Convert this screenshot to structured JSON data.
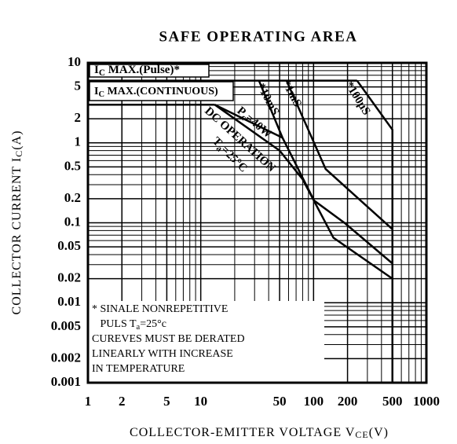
{
  "chart_data": {
    "type": "line",
    "title": "SAFE OPERATING AREA",
    "x_label": [
      "COLLECTOR-EMITTER VOLTAGE V",
      "CE",
      "(V)"
    ],
    "y_label": [
      "COLLECTOR CURRENT I",
      "C",
      "(A)"
    ],
    "log_x": true,
    "log_y": true,
    "grid": true,
    "color": "#000000",
    "xlim": [
      1,
      1000
    ],
    "ylim": [
      0.001,
      10
    ],
    "xticks": [
      1,
      2,
      5,
      10,
      50,
      100,
      200,
      500,
      1000
    ],
    "yticks": [
      10,
      5,
      2,
      1,
      0.5,
      0.2,
      0.1,
      0.05,
      0.02,
      0.01,
      0.005,
      0.002,
      0.001
    ],
    "x_minor_ticks": [
      3,
      4,
      6,
      7,
      8,
      9,
      20,
      30,
      40,
      60,
      70,
      80,
      90,
      300,
      400,
      600,
      700,
      800,
      900
    ],
    "y_minor_ticks": [
      3,
      4,
      6,
      7,
      8,
      9,
      0.3,
      0.4,
      0.6,
      0.7,
      0.8,
      0.9,
      0.03,
      0.04,
      0.06,
      0.07,
      0.08,
      0.09,
      0.003,
      0.004,
      0.006,
      0.007,
      0.008,
      0.009
    ],
    "series": [
      {
        "name": [
          "I",
          "C",
          " MAX.(Pulse)*"
        ],
        "x": [
          1,
          243
        ],
        "values": [
          6,
          6
        ]
      },
      {
        "name": [
          "I",
          "C",
          " MAX.(CONTINUOUS)"
        ],
        "x": [
          1,
          13.3
        ],
        "values": [
          3,
          3
        ]
      },
      {
        "name": [
          "DC  OPERATION"
        ],
        "x": [
          13.3,
          50,
          80,
          150,
          500
        ],
        "values": [
          3,
          0.8,
          0.35,
          0.065,
          0.02
        ]
      },
      {
        "name": [
          "P",
          "c",
          "=40W"
        ],
        "x": [
          13.3,
          53
        ],
        "values": [
          3,
          1.16
        ]
      },
      {
        "name": [
          "*10mS"
        ],
        "x": [
          32.8,
          53,
          101,
          191,
          500
        ],
        "values": [
          6,
          1.16,
          0.19,
          0.098,
          0.031
        ]
      },
      {
        "name": [
          "*1mS"
        ],
        "x": [
          57.6,
          128,
          500
        ],
        "values": [
          6,
          0.47,
          0.083
        ]
      },
      {
        "name": [
          "*100μS"
        ],
        "x": [
          243,
          500,
          500
        ],
        "values": [
          6,
          1.46,
          0.001
        ]
      }
    ],
    "condition": [
      "T",
      "a",
      "=25°C"
    ],
    "note": [
      [
        "* SINALE NONREPETITIVE"
      ],
      [
        "   PULS T",
        "a",
        "=25°c"
      ],
      [
        "CUREVES MUST BE DERATED"
      ],
      [
        "LINEARLY WITH INCREASE"
      ],
      [
        "IN TEMPERATURE"
      ]
    ]
  }
}
